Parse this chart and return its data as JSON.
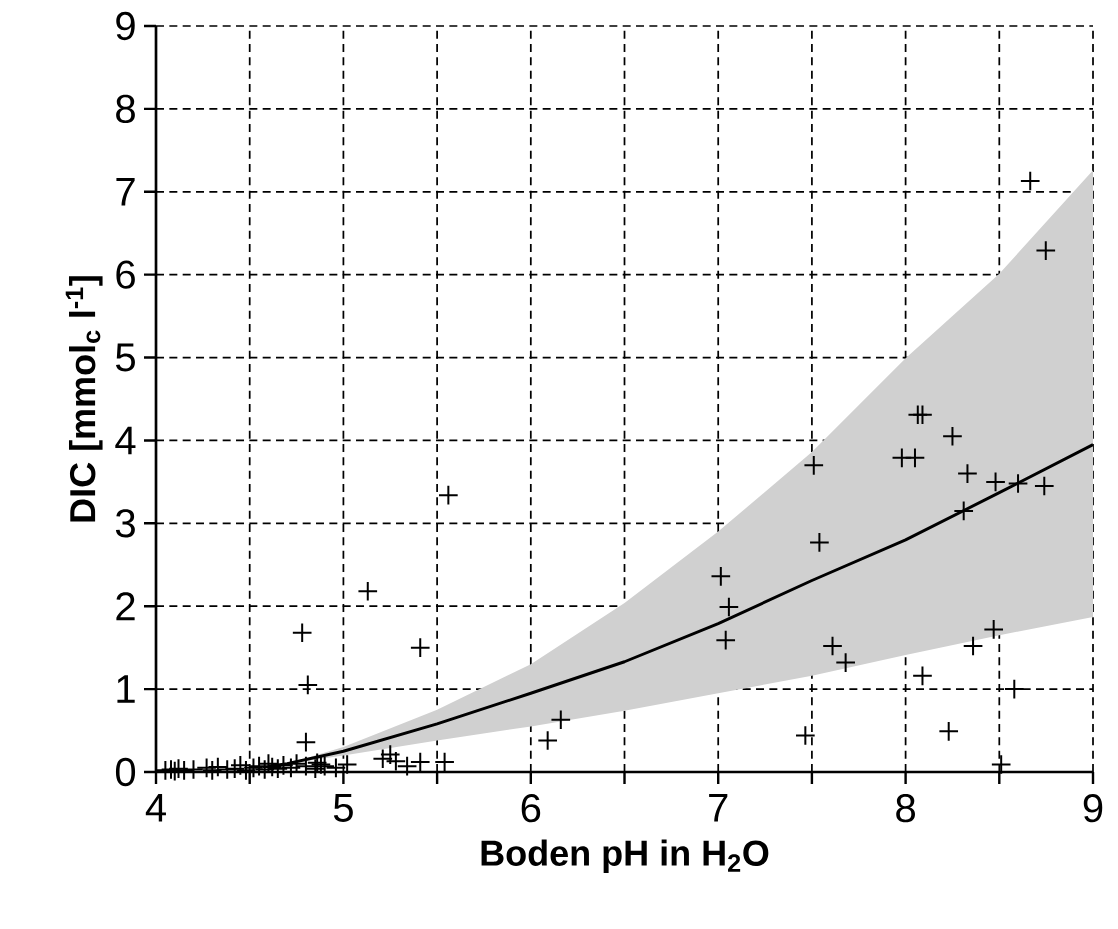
{
  "chart_data": {
    "type": "scatter",
    "xlabel": "Boden pH in H$_{2}$O",
    "ylabel": "DIC [mmol$_{c}$ l$^{-1}$]",
    "xlim": [
      4,
      9
    ],
    "ylim": [
      0,
      9
    ],
    "xticks": [
      4,
      {
        "value": 4.5,
        "label": null
      },
      5,
      {
        "value": 5.5,
        "label": null
      },
      6,
      {
        "value": 6.5,
        "label": null
      },
      7,
      {
        "value": 7.5,
        "label": null
      },
      8,
      {
        "value": 8.5,
        "label": null
      },
      9
    ],
    "yticks": [
      0,
      1,
      2,
      3,
      4,
      5,
      6,
      7,
      8,
      9
    ],
    "grid": true,
    "series": [
      {
        "type": "line",
        "color": "#000000",
        "marker": "none",
        "line_style": "solid",
        "x": [
          4.6,
          4.7,
          5,
          5.5,
          6,
          6.5,
          7,
          7.5,
          8,
          8.5,
          9
        ],
        "values": [
          0.07,
          0.1,
          0.25,
          0.58,
          0.95,
          1.33,
          1.79,
          2.31,
          2.8,
          3.37,
          3.95
        ],
        "lower": [
          0.07,
          0.1,
          0.2,
          0.38,
          0.55,
          0.74,
          0.95,
          1.16,
          1.41,
          1.65,
          1.87
        ],
        "upper": [
          0.07,
          0.1,
          0.3,
          0.75,
          1.3,
          2.04,
          2.9,
          3.86,
          4.99,
          6.01,
          7.26
        ]
      },
      {
        "color": "#000000",
        "marker": "cross",
        "x": [
          4.05,
          4.08,
          4.1,
          4.12,
          4.15,
          4.2,
          4.27,
          4.3,
          4.33,
          4.38,
          4.42,
          4.45,
          4.48,
          4.52,
          4.55,
          4.58,
          4.6,
          4.62,
          4.65,
          4.68,
          4.72,
          4.75,
          4.8,
          4.85,
          4.88,
          4.86,
          4.9,
          4.96,
          5.02,
          5.21,
          5.25,
          5.28,
          5.34,
          5.41,
          5.54,
          4.78,
          4.81,
          4.8,
          5.13,
          5.41,
          5.56,
          6.09,
          6.16,
          7.014,
          7.057,
          7.04,
          7.465,
          7.51,
          7.54,
          7.61,
          7.68,
          7.98,
          8.05,
          8.065,
          8.09,
          8.09,
          8.23,
          8.25,
          8.31,
          8.33,
          8.36,
          8.47,
          8.48,
          8.51,
          8.58,
          8.6,
          8.665,
          8.74,
          8.748
        ],
        "values": [
          0.02,
          0.03,
          0.01,
          0.04,
          0.02,
          0.03,
          0.05,
          0.02,
          0.06,
          0.03,
          0.04,
          0.08,
          0.02,
          0.05,
          0.07,
          0.03,
          0.1,
          0.06,
          0.04,
          0.08,
          0.05,
          0.1,
          0.07,
          0.04,
          0.09,
          0.11,
          0.07,
          0.05,
          0.09,
          0.16,
          0.21,
          0.13,
          0.07,
          0.12,
          0.12,
          1.68,
          1.05,
          0.36,
          2.18,
          1.5,
          3.34,
          0.38,
          0.63,
          2.36,
          1.99,
          1.59,
          0.44,
          3.7,
          2.77,
          1.52,
          1.32,
          3.79,
          3.79,
          4.31,
          4.31,
          1.16,
          0.49,
          4.05,
          3.15,
          3.6,
          1.52,
          1.72,
          3.5,
          0.09,
          1.0,
          3.48,
          7.13,
          3.45,
          6.29
        ]
      }
    ]
  }
}
